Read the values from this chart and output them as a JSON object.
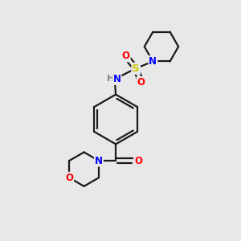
{
  "bg_color": "#e8e8e8",
  "bond_color": "#1a1a1a",
  "atom_colors": {
    "N": "#0000ff",
    "O": "#ff0000",
    "S": "#cccc00",
    "H": "#808080",
    "C": "#1a1a1a"
  },
  "lw": 1.6,
  "fontsize": 8.5
}
